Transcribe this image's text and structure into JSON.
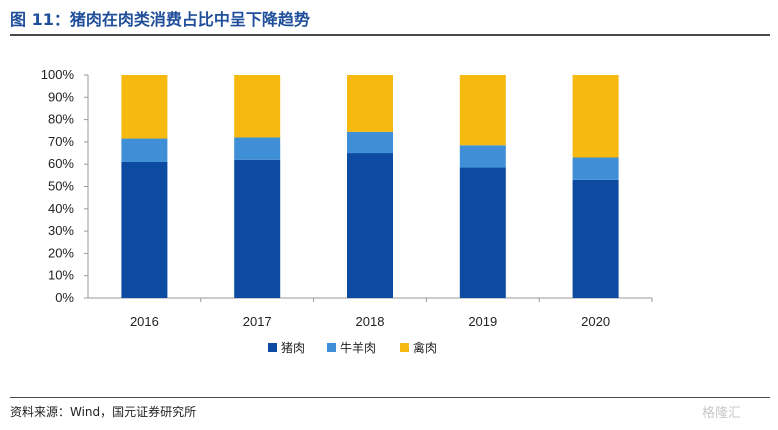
{
  "header": {
    "title": "图 11：猪肉在肉类消费占比中呈下降趋势"
  },
  "footer": {
    "source": "资料来源：Wind，国元证券研究所"
  },
  "watermark": {
    "text": "格隆汇"
  },
  "chart_data": {
    "type": "bar",
    "stacked": true,
    "categories": [
      "2016",
      "2017",
      "2018",
      "2019",
      "2020"
    ],
    "series": [
      {
        "name": "猪肉",
        "values": [
          61,
          62,
          65,
          58.5,
          53
        ],
        "color": "#0d4aa1"
      },
      {
        "name": "牛羊肉",
        "values": [
          10.5,
          10,
          9.5,
          10,
          10
        ],
        "color": "#3f8fd6"
      },
      {
        "name": "禽肉",
        "values": [
          28.5,
          28,
          25.5,
          31.5,
          37
        ],
        "color": "#f6b90f"
      }
    ],
    "ylim": [
      0,
      100
    ],
    "yticks": [
      "0%",
      "10%",
      "20%",
      "30%",
      "40%",
      "50%",
      "60%",
      "70%",
      "80%",
      "90%",
      "100%"
    ],
    "legend_position": "bottom",
    "grid": false
  }
}
